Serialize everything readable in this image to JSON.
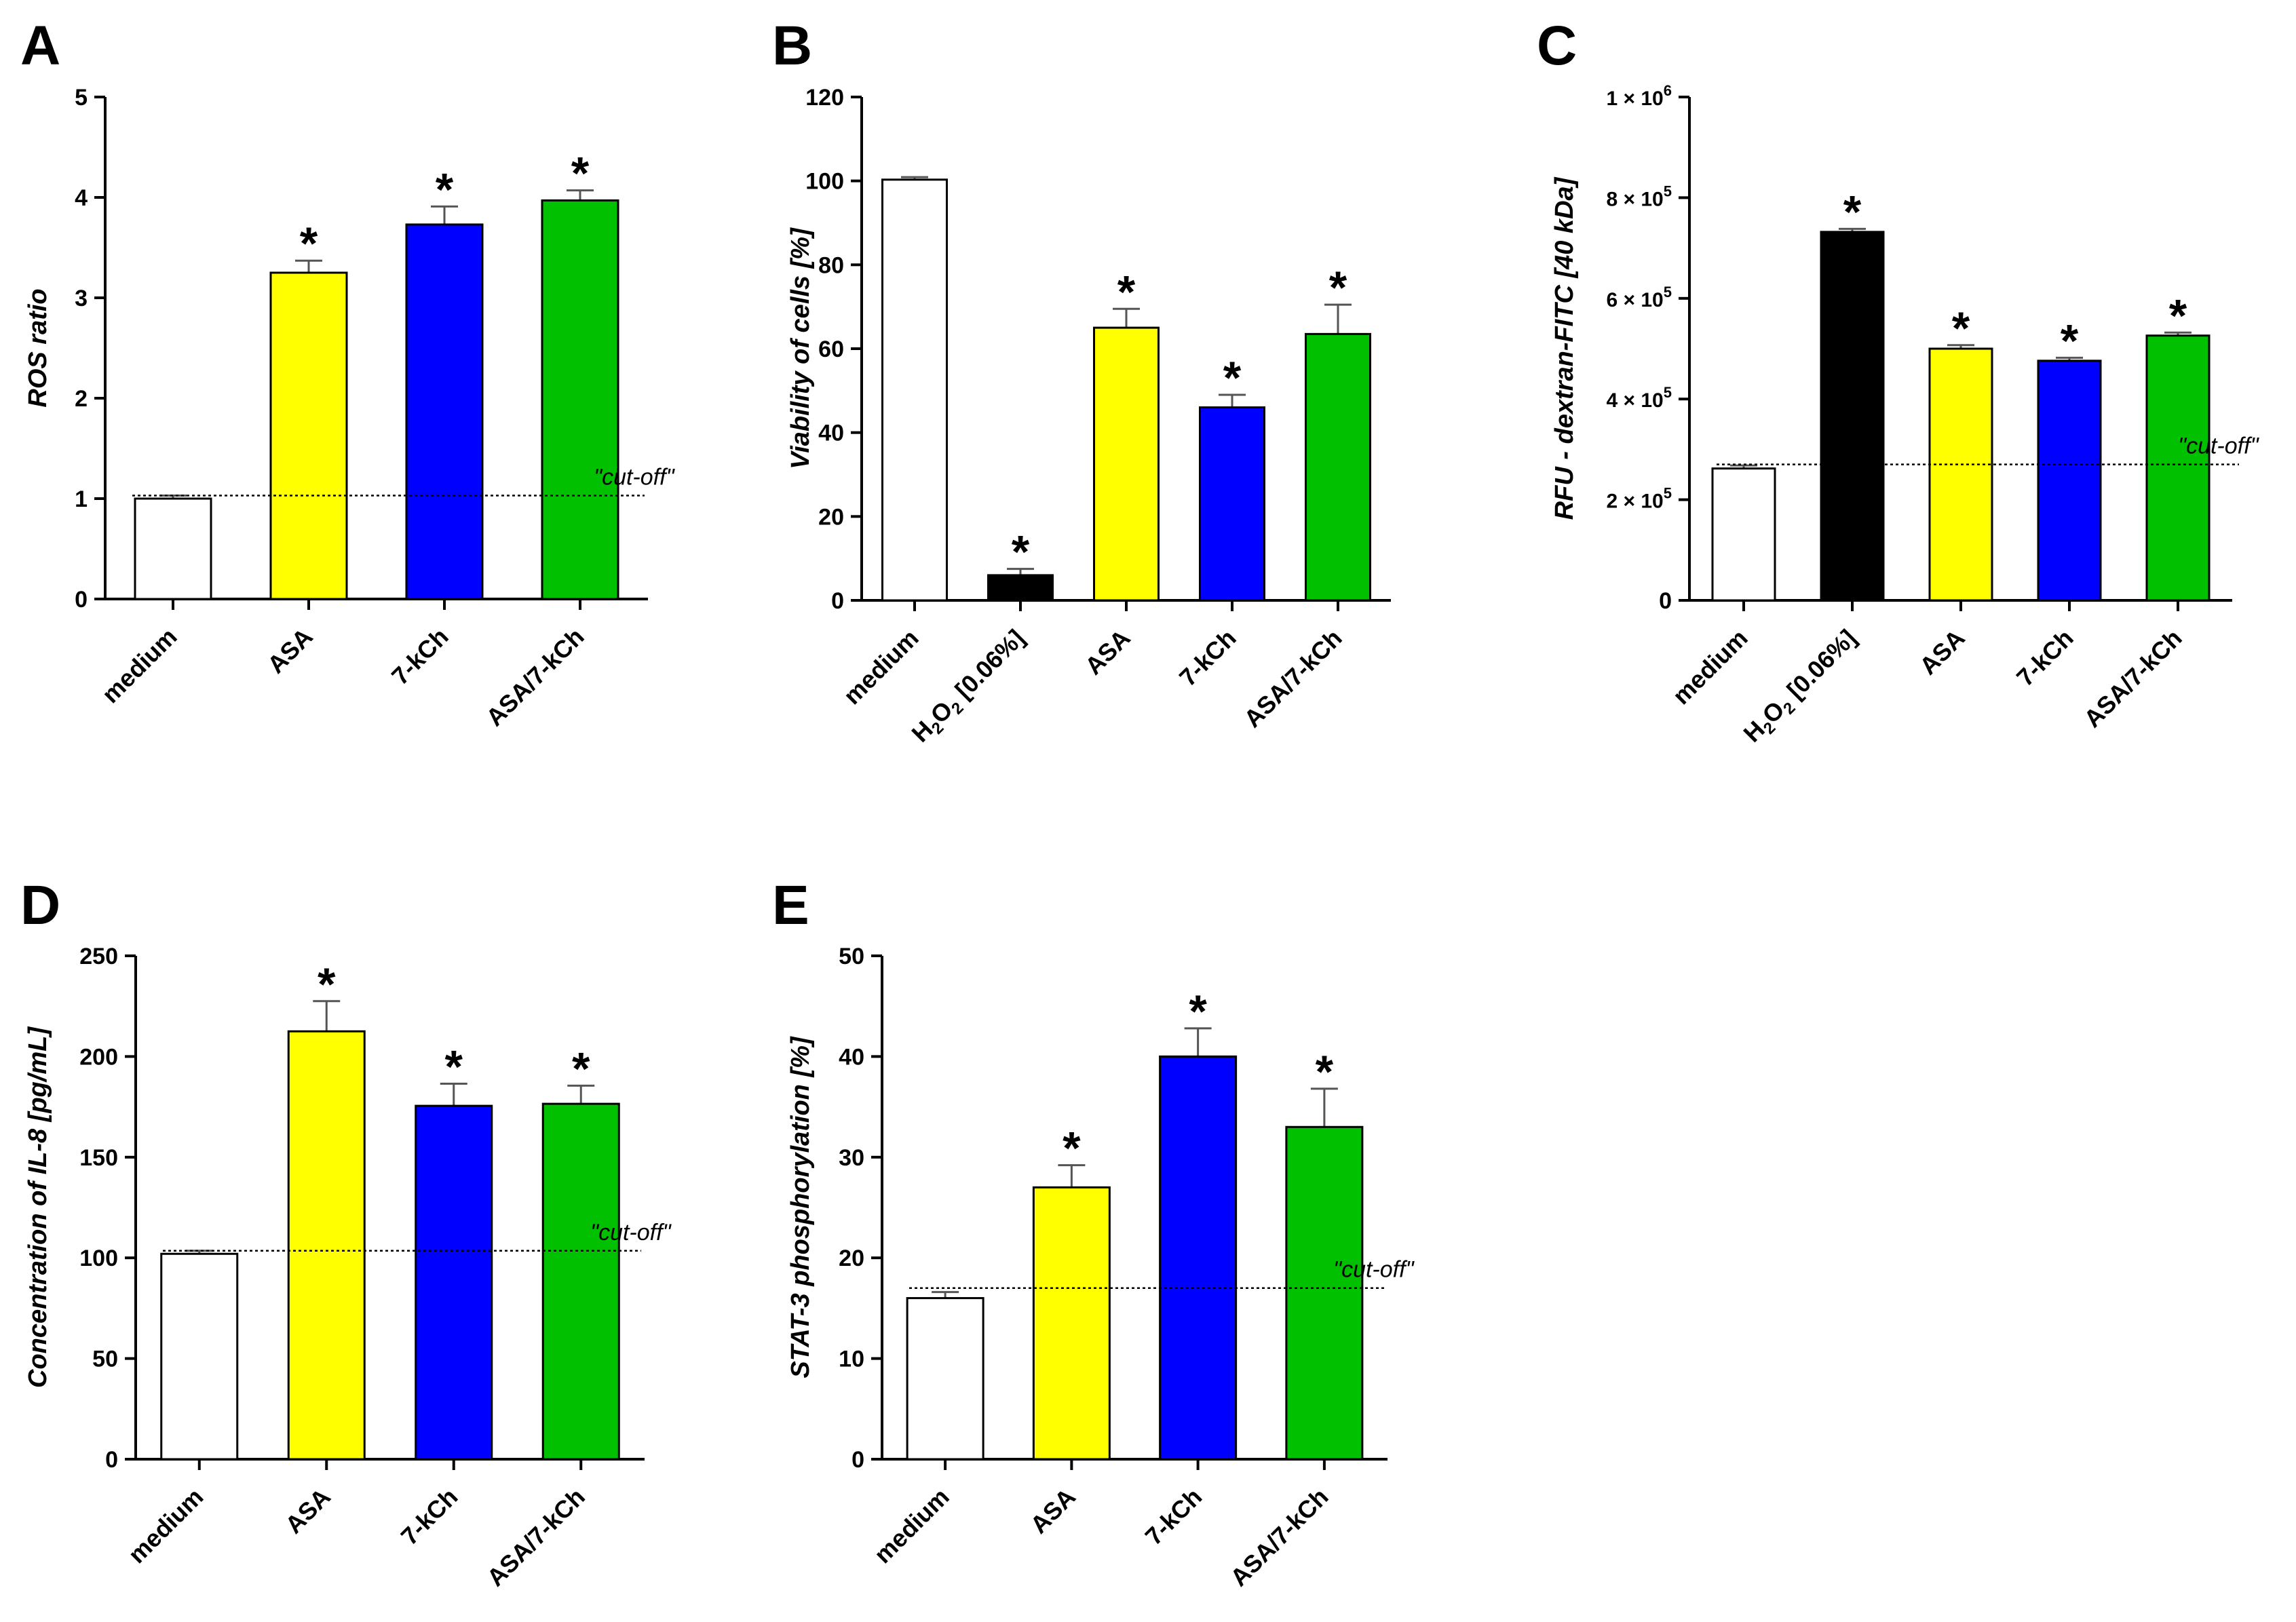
{
  "figure": {
    "panels": [
      "A",
      "B",
      "C",
      "D",
      "E"
    ]
  },
  "colors": {
    "medium": "#ffffff",
    "h2o2": "#000000",
    "asa": "#ffff00",
    "kch": "#0000ff",
    "combo": "#00c000",
    "axis": "#000000",
    "errorbar": "#555555"
  },
  "chart_data": [
    {
      "panel": "A",
      "type": "bar",
      "title": "",
      "xlabel": "",
      "ylabel": "ROS ratio",
      "ylim": [
        0,
        5
      ],
      "yticks": [
        "0",
        "1",
        "2",
        "3",
        "4",
        "5"
      ],
      "categories": [
        "medium",
        "ASA",
        "7-kCh",
        "ASA/7-kCh"
      ],
      "values": [
        1.0,
        3.25,
        3.73,
        3.97
      ],
      "errors": [
        0.03,
        0.12,
        0.18,
        0.1
      ],
      "significant": [
        "",
        "*",
        "*",
        "*"
      ],
      "cutoff": 1.03,
      "cutoff_label": "\"cut-off\""
    },
    {
      "panel": "B",
      "type": "bar",
      "title": "",
      "xlabel": "",
      "ylabel": "Viability of cells [%]",
      "ylim": [
        0,
        120
      ],
      "yticks": [
        "0",
        "20",
        "40",
        "60",
        "80",
        "100",
        "120"
      ],
      "categories": [
        "medium",
        "H2O2 [0.06%]",
        "ASA",
        "7-kCh",
        "ASA/7-kCh"
      ],
      "values": [
        100.3,
        6.0,
        65.0,
        46.0,
        63.5
      ],
      "errors": [
        0.6,
        1.5,
        4.5,
        3.0,
        7.0
      ],
      "significant": [
        "",
        "*",
        "*",
        "*",
        "*"
      ]
    },
    {
      "panel": "C",
      "type": "bar",
      "title": "",
      "xlabel": "",
      "ylabel": "RFU - dextran-FITC [40 kDa]",
      "ylim": [
        0,
        1000000
      ],
      "yticks": [
        "0",
        "2 × 10^5",
        "4 × 10^5",
        "6 × 10^5",
        "8 × 10^5",
        "1 × 10^6"
      ],
      "categories": [
        "medium",
        "H2O2 [0.06%]",
        "ASA",
        "7-kCh",
        "ASA/7-kCh"
      ],
      "values": [
        262000,
        732000,
        500000,
        476000,
        526000
      ],
      "errors": [
        6000,
        6000,
        7000,
        6000,
        6000
      ],
      "significant": [
        "",
        "*",
        "*",
        "*",
        "*"
      ],
      "cutoff": 270000,
      "cutoff_label": "\"cut-off\""
    },
    {
      "panel": "D",
      "type": "bar",
      "title": "",
      "xlabel": "",
      "ylabel": "Concentration of IL-8 [pg/mL]",
      "ylim": [
        0,
        250
      ],
      "yticks": [
        "0",
        "50",
        "100",
        "150",
        "200",
        "250"
      ],
      "categories": [
        "medium",
        "ASA",
        "7-kCh",
        "ASA/7-kCh"
      ],
      "values": [
        102,
        212.5,
        175.5,
        176.5
      ],
      "errors": [
        1.5,
        15,
        11,
        9
      ],
      "significant": [
        "",
        "*",
        "*",
        "*"
      ],
      "cutoff": 103.5,
      "cutoff_label": "\"cut-off\""
    },
    {
      "panel": "E",
      "type": "bar",
      "title": "",
      "xlabel": "",
      "ylabel": "STAT-3 phosphorylation [%]",
      "ylim": [
        0,
        50
      ],
      "yticks": [
        "0",
        "10",
        "20",
        "30",
        "40",
        "50"
      ],
      "categories": [
        "medium",
        "ASA",
        "7-kCh",
        "ASA/7-kCh"
      ],
      "values": [
        16,
        27,
        40,
        33
      ],
      "errors": [
        0.6,
        2.2,
        2.8,
        3.8
      ],
      "significant": [
        "",
        "*",
        "*",
        "*"
      ],
      "cutoff": 17,
      "cutoff_label": "\"cut-off\""
    }
  ]
}
